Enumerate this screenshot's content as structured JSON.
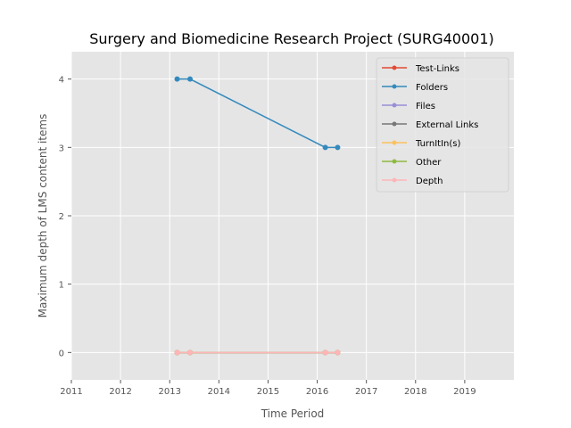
{
  "chart_data": {
    "type": "line",
    "title": "Surgery and Biomedicine Research Project (SURG40001)",
    "xlabel": "Time Period",
    "ylabel": "Maximum depth of LMS content items",
    "xlim": [
      2011,
      2020
    ],
    "ylim": [
      -0.4,
      4.4
    ],
    "x_ticks": [
      "2011",
      "2012",
      "2013",
      "2014",
      "2015",
      "2016",
      "2017",
      "2018",
      "2019"
    ],
    "y_ticks": [
      "0",
      "1",
      "2",
      "3",
      "4"
    ],
    "grid": true,
    "legend_position": "top-right",
    "x": [
      "2013-02-25",
      "2013-06-01",
      "2016-03-01",
      "2016-06-01"
    ],
    "series": [
      {
        "name": "Test-Links",
        "color": "#E24A33",
        "values": [
          0,
          0,
          0,
          0
        ]
      },
      {
        "name": "Folders",
        "color": "#348ABD",
        "values": [
          4,
          4,
          3,
          3
        ]
      },
      {
        "name": "Files",
        "color": "#988ED5",
        "values": [
          0,
          0,
          0,
          0
        ]
      },
      {
        "name": "External Links",
        "color": "#777777",
        "values": [
          0,
          0,
          0,
          0
        ]
      },
      {
        "name": "TurnItIn(s)",
        "color": "#FBC15E",
        "values": [
          0,
          0,
          0,
          0
        ]
      },
      {
        "name": "Other",
        "color": "#8EBA42",
        "values": [
          0,
          0,
          0,
          0
        ]
      },
      {
        "name": "Depth",
        "color": "#FFB5B8",
        "values": [
          0,
          0,
          0,
          0
        ]
      }
    ]
  }
}
